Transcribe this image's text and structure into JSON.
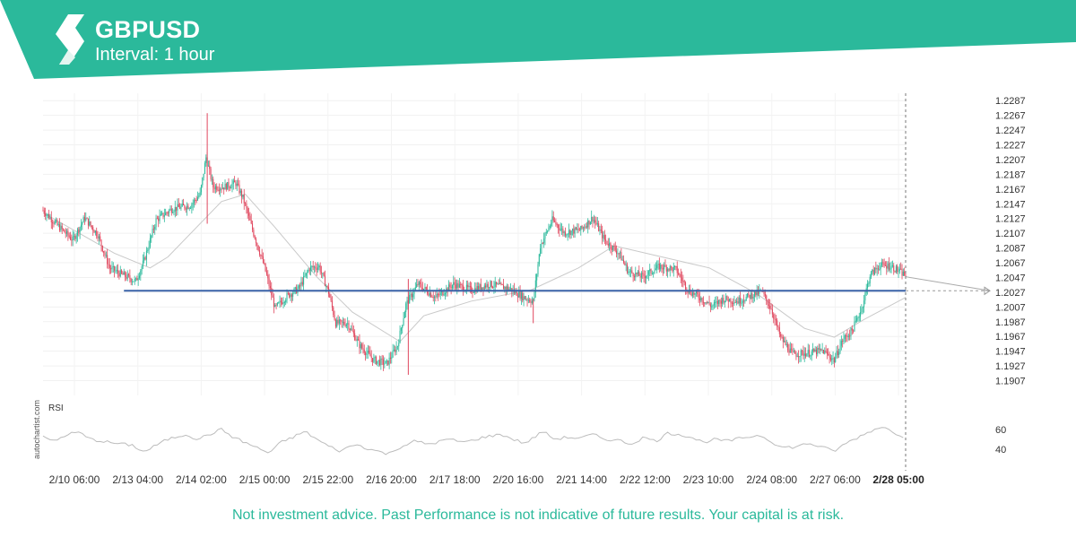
{
  "header": {
    "symbol": "GBPUSD",
    "interval": "Interval: 1 hour",
    "brand_color": "#2bb99b",
    "logo_icon": "autochartist-logo-icon"
  },
  "footer": {
    "disclaimer": "Not investment advice. Past Performance is not indicative of future results. Your capital is at risk."
  },
  "watermark": "autochartist.com",
  "chart_data": {
    "type": "candlestick",
    "symbol": "GBPUSD",
    "interval": "1 hour",
    "up_color": "#2bb99b",
    "down_color": "#e0475e",
    "ylim": [
      1.1887,
      1.2297
    ],
    "y_ticks": [
      "1.2287",
      "1.2267",
      "1.2247",
      "1.2227",
      "1.2207",
      "1.2187",
      "1.2167",
      "1.2147",
      "1.2127",
      "1.2107",
      "1.2087",
      "1.2067",
      "1.2047",
      "1.2027",
      "1.2007",
      "1.1987",
      "1.1967",
      "1.1947",
      "1.1927",
      "1.1907"
    ],
    "x_ticks": [
      "2/10 06:00",
      "2/13 04:00",
      "2/14 02:00",
      "2/15 00:00",
      "2/15 22:00",
      "2/16 20:00",
      "2/17 18:00",
      "2/20 16:00",
      "2/21 14:00",
      "2/22 12:00",
      "2/23 10:00",
      "2/24 08:00",
      "2/27 06:00",
      "2/28 05:00"
    ],
    "highlighted_x_tick": "2/28 05:00",
    "price_path": [
      [
        0,
        1.2138
      ],
      [
        12,
        1.2118
      ],
      [
        25,
        1.2098
      ],
      [
        35,
        1.2128
      ],
      [
        46,
        1.2105
      ],
      [
        56,
        1.206
      ],
      [
        65,
        1.2052
      ],
      [
        78,
        1.2042
      ],
      [
        85,
        1.207
      ],
      [
        95,
        1.2125
      ],
      [
        108,
        1.214
      ],
      [
        124,
        1.2145
      ],
      [
        132,
        1.216
      ],
      [
        137,
        1.221
      ],
      [
        143,
        1.217
      ],
      [
        152,
        1.217
      ],
      [
        162,
        1.2175
      ],
      [
        168,
        1.2155
      ],
      [
        176,
        1.2112
      ],
      [
        186,
        1.2062
      ],
      [
        195,
        1.2005
      ],
      [
        205,
        1.2022
      ],
      [
        215,
        1.2032
      ],
      [
        224,
        1.206
      ],
      [
        232,
        1.2062
      ],
      [
        240,
        1.2027
      ],
      [
        246,
        1.1985
      ],
      [
        256,
        1.1985
      ],
      [
        266,
        1.1955
      ],
      [
        278,
        1.1935
      ],
      [
        289,
        1.193
      ],
      [
        298,
        1.1955
      ],
      [
        305,
        1.201
      ],
      [
        315,
        1.2038
      ],
      [
        330,
        1.202
      ],
      [
        345,
        1.2038
      ],
      [
        360,
        1.203
      ],
      [
        375,
        1.2038
      ],
      [
        392,
        1.2032
      ],
      [
        404,
        1.202
      ],
      [
        412,
        1.2015
      ],
      [
        418,
        1.209
      ],
      [
        428,
        1.2125
      ],
      [
        438,
        1.2108
      ],
      [
        452,
        1.2112
      ],
      [
        462,
        1.2128
      ],
      [
        472,
        1.2098
      ],
      [
        484,
        1.208
      ],
      [
        492,
        1.2055
      ],
      [
        504,
        1.2048
      ],
      [
        518,
        1.2062
      ],
      [
        532,
        1.2058
      ],
      [
        542,
        1.203
      ],
      [
        552,
        1.202
      ],
      [
        562,
        1.2008
      ],
      [
        572,
        1.2018
      ],
      [
        584,
        1.2015
      ],
      [
        594,
        1.2022
      ],
      [
        604,
        1.2028
      ],
      [
        612,
        1.2005
      ],
      [
        620,
        1.1965
      ],
      [
        630,
        1.1943
      ],
      [
        645,
        1.1945
      ],
      [
        655,
        1.1948
      ],
      [
        665,
        1.1935
      ],
      [
        672,
        1.1962
      ],
      [
        680,
        1.1975
      ],
      [
        688,
        1.2005
      ],
      [
        695,
        1.205
      ],
      [
        703,
        1.2063
      ],
      [
        712,
        1.2063
      ],
      [
        720,
        1.2055
      ],
      [
        725,
        1.205
      ]
    ],
    "moving_average": [
      [
        0,
        1.2135
      ],
      [
        60,
        1.208
      ],
      [
        90,
        1.206
      ],
      [
        105,
        1.2075
      ],
      [
        150,
        1.215
      ],
      [
        170,
        1.216
      ],
      [
        195,
        1.2115
      ],
      [
        230,
        1.2048
      ],
      [
        260,
        1.2
      ],
      [
        300,
        1.196
      ],
      [
        320,
        1.1995
      ],
      [
        360,
        1.2015
      ],
      [
        410,
        1.203
      ],
      [
        450,
        1.206
      ],
      [
        480,
        1.209
      ],
      [
        520,
        1.2075
      ],
      [
        560,
        1.206
      ],
      [
        600,
        1.2025
      ],
      [
        640,
        1.1978
      ],
      [
        665,
        1.1966
      ],
      [
        690,
        1.199
      ],
      [
        725,
        1.202
      ]
    ],
    "support_line": {
      "value": 1.2029,
      "from_index": 68,
      "to_index": 725
    },
    "projection": {
      "from": [
        725,
        1.2048
      ],
      "to": [
        800,
        1.2029
      ]
    },
    "cursor_index": 725,
    "rsi": {
      "label": "RSI",
      "y_ticks": [
        "60",
        "40"
      ],
      "ylim": [
        30,
        68
      ],
      "values": [
        [
          0,
          52
        ],
        [
          10,
          48
        ],
        [
          20,
          55
        ],
        [
          30,
          57
        ],
        [
          40,
          50
        ],
        [
          60,
          46
        ],
        [
          75,
          44
        ],
        [
          85,
          37
        ],
        [
          95,
          44
        ],
        [
          105,
          50
        ],
        [
          120,
          55
        ],
        [
          130,
          50
        ],
        [
          140,
          55
        ],
        [
          150,
          60
        ],
        [
          160,
          52
        ],
        [
          175,
          44
        ],
        [
          190,
          36
        ],
        [
          200,
          47
        ],
        [
          210,
          52
        ],
        [
          220,
          58
        ],
        [
          230,
          50
        ],
        [
          240,
          43
        ],
        [
          250,
          38
        ],
        [
          262,
          45
        ],
        [
          275,
          40
        ],
        [
          290,
          35
        ],
        [
          300,
          42
        ],
        [
          312,
          48
        ],
        [
          325,
          45
        ],
        [
          340,
          50
        ],
        [
          355,
          47
        ],
        [
          370,
          52
        ],
        [
          385,
          55
        ],
        [
          395,
          50
        ],
        [
          405,
          46
        ],
        [
          413,
          52
        ],
        [
          420,
          58
        ],
        [
          430,
          50
        ],
        [
          440,
          52
        ],
        [
          452,
          51
        ],
        [
          462,
          55
        ],
        [
          472,
          50
        ],
        [
          484,
          49
        ],
        [
          494,
          45
        ],
        [
          505,
          52
        ],
        [
          515,
          48
        ],
        [
          525,
          56
        ],
        [
          535,
          55
        ],
        [
          545,
          52
        ],
        [
          555,
          47
        ],
        [
          565,
          50
        ],
        [
          575,
          48
        ],
        [
          590,
          52
        ],
        [
          603,
          54
        ],
        [
          612,
          48
        ],
        [
          620,
          42
        ],
        [
          632,
          42
        ],
        [
          643,
          46
        ],
        [
          652,
          43
        ],
        [
          665,
          38
        ],
        [
          675,
          46
        ],
        [
          685,
          52
        ],
        [
          695,
          58
        ],
        [
          705,
          63
        ],
        [
          715,
          57
        ],
        [
          725,
          52
        ]
      ]
    }
  }
}
